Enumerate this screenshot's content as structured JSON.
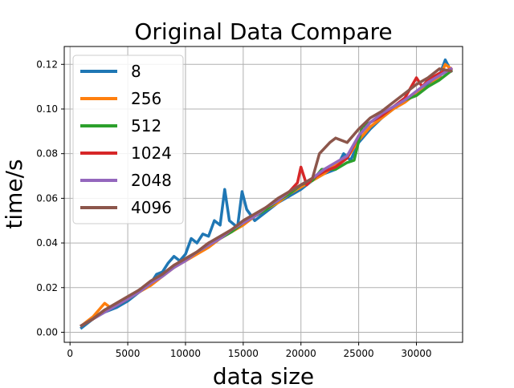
{
  "chart_data": {
    "type": "line",
    "title": "Original Data Compare",
    "xlabel": "data size",
    "ylabel": "time/s",
    "xlim": [
      -500,
      34000
    ],
    "ylim": [
      -0.0045,
      0.128
    ],
    "xticks": [
      0,
      5000,
      10000,
      15000,
      20000,
      25000,
      30000
    ],
    "xtick_labels": [
      "0",
      "5000",
      "10000",
      "15000",
      "20000",
      "25000",
      "30000"
    ],
    "yticks": [
      0.0,
      0.02,
      0.04,
      0.06,
      0.08,
      0.1,
      0.12
    ],
    "ytick_labels": [
      "0.00",
      "0.02",
      "0.04",
      "0.06",
      "0.08",
      "0.10",
      "0.12"
    ],
    "grid": true,
    "legend_position": "top-left",
    "series": [
      {
        "name": "8",
        "color": "#1f77b4",
        "points": [
          [
            1000,
            0.002
          ],
          [
            2000,
            0.006
          ],
          [
            3000,
            0.009
          ],
          [
            4000,
            0.011
          ],
          [
            5000,
            0.014
          ],
          [
            6000,
            0.018
          ],
          [
            7000,
            0.022
          ],
          [
            7500,
            0.026
          ],
          [
            8000,
            0.027
          ],
          [
            8500,
            0.031
          ],
          [
            9000,
            0.034
          ],
          [
            9500,
            0.032
          ],
          [
            10000,
            0.035
          ],
          [
            10500,
            0.042
          ],
          [
            11000,
            0.04
          ],
          [
            11500,
            0.044
          ],
          [
            12000,
            0.043
          ],
          [
            12500,
            0.05
          ],
          [
            13000,
            0.048
          ],
          [
            13400,
            0.064
          ],
          [
            13800,
            0.05
          ],
          [
            14500,
            0.047
          ],
          [
            14900,
            0.063
          ],
          [
            15300,
            0.055
          ],
          [
            16000,
            0.05
          ],
          [
            17000,
            0.054
          ],
          [
            18000,
            0.058
          ],
          [
            19000,
            0.061
          ],
          [
            20000,
            0.064
          ],
          [
            21000,
            0.068
          ],
          [
            22000,
            0.071
          ],
          [
            23000,
            0.073
          ],
          [
            23700,
            0.08
          ],
          [
            24300,
            0.077
          ],
          [
            25000,
            0.085
          ],
          [
            26000,
            0.091
          ],
          [
            27000,
            0.096
          ],
          [
            28000,
            0.1
          ],
          [
            29000,
            0.104
          ],
          [
            30000,
            0.107
          ],
          [
            31000,
            0.111
          ],
          [
            32000,
            0.115
          ],
          [
            32500,
            0.122
          ],
          [
            33000,
            0.117
          ]
        ]
      },
      {
        "name": "256",
        "color": "#ff7f0e",
        "points": [
          [
            1000,
            0.003
          ],
          [
            2000,
            0.007
          ],
          [
            3000,
            0.013
          ],
          [
            3500,
            0.011
          ],
          [
            4000,
            0.012
          ],
          [
            5000,
            0.015
          ],
          [
            6000,
            0.018
          ],
          [
            7000,
            0.021
          ],
          [
            8000,
            0.025
          ],
          [
            9000,
            0.029
          ],
          [
            10000,
            0.032
          ],
          [
            11000,
            0.035
          ],
          [
            12000,
            0.038
          ],
          [
            13000,
            0.042
          ],
          [
            14000,
            0.045
          ],
          [
            15000,
            0.048
          ],
          [
            16000,
            0.052
          ],
          [
            17000,
            0.055
          ],
          [
            18000,
            0.058
          ],
          [
            19000,
            0.062
          ],
          [
            20000,
            0.065
          ],
          [
            21000,
            0.068
          ],
          [
            22000,
            0.071
          ],
          [
            23000,
            0.075
          ],
          [
            24000,
            0.078
          ],
          [
            25000,
            0.086
          ],
          [
            26000,
            0.092
          ],
          [
            27000,
            0.096
          ],
          [
            28000,
            0.1
          ],
          [
            29000,
            0.103
          ],
          [
            30000,
            0.107
          ],
          [
            31000,
            0.11
          ],
          [
            32000,
            0.114
          ],
          [
            32500,
            0.12
          ],
          [
            33000,
            0.118
          ]
        ]
      },
      {
        "name": "512",
        "color": "#2ca02c",
        "points": [
          [
            1000,
            0.003
          ],
          [
            2000,
            0.006
          ],
          [
            3000,
            0.01
          ],
          [
            4000,
            0.012
          ],
          [
            5000,
            0.015
          ],
          [
            6000,
            0.018
          ],
          [
            7000,
            0.022
          ],
          [
            8000,
            0.026
          ],
          [
            9000,
            0.029
          ],
          [
            10000,
            0.033
          ],
          [
            11000,
            0.036
          ],
          [
            12000,
            0.039
          ],
          [
            13000,
            0.042
          ],
          [
            14000,
            0.045
          ],
          [
            15000,
            0.049
          ],
          [
            16000,
            0.052
          ],
          [
            17000,
            0.055
          ],
          [
            18000,
            0.059
          ],
          [
            19000,
            0.062
          ],
          [
            20000,
            0.066
          ],
          [
            21000,
            0.068
          ],
          [
            21800,
            0.073
          ],
          [
            23000,
            0.073
          ],
          [
            24000,
            0.076
          ],
          [
            24600,
            0.077
          ],
          [
            25300,
            0.092
          ],
          [
            26000,
            0.094
          ],
          [
            27000,
            0.097
          ],
          [
            28000,
            0.101
          ],
          [
            29000,
            0.104
          ],
          [
            30000,
            0.106
          ],
          [
            31000,
            0.11
          ],
          [
            32000,
            0.113
          ],
          [
            33000,
            0.117
          ]
        ]
      },
      {
        "name": "1024",
        "color": "#d62728",
        "points": [
          [
            1000,
            0.003
          ],
          [
            2000,
            0.006
          ],
          [
            3000,
            0.01
          ],
          [
            4000,
            0.012
          ],
          [
            5000,
            0.015
          ],
          [
            6000,
            0.019
          ],
          [
            7000,
            0.022
          ],
          [
            8000,
            0.026
          ],
          [
            9000,
            0.03
          ],
          [
            10000,
            0.033
          ],
          [
            11000,
            0.036
          ],
          [
            12000,
            0.04
          ],
          [
            13000,
            0.042
          ],
          [
            14000,
            0.046
          ],
          [
            15000,
            0.049
          ],
          [
            16000,
            0.052
          ],
          [
            17000,
            0.056
          ],
          [
            18000,
            0.059
          ],
          [
            19000,
            0.063
          ],
          [
            19700,
            0.067
          ],
          [
            20000,
            0.074
          ],
          [
            20500,
            0.066
          ],
          [
            21000,
            0.069
          ],
          [
            22000,
            0.072
          ],
          [
            23000,
            0.074
          ],
          [
            24000,
            0.078
          ],
          [
            25000,
            0.088
          ],
          [
            26000,
            0.094
          ],
          [
            27000,
            0.097
          ],
          [
            28000,
            0.101
          ],
          [
            29000,
            0.105
          ],
          [
            30000,
            0.114
          ],
          [
            30500,
            0.11
          ],
          [
            31000,
            0.113
          ],
          [
            32000,
            0.116
          ],
          [
            33000,
            0.118
          ]
        ]
      },
      {
        "name": "2048",
        "color": "#9467bd",
        "points": [
          [
            1000,
            0.003
          ],
          [
            2000,
            0.006
          ],
          [
            3000,
            0.009
          ],
          [
            4000,
            0.012
          ],
          [
            5000,
            0.015
          ],
          [
            6000,
            0.018
          ],
          [
            7000,
            0.022
          ],
          [
            8000,
            0.025
          ],
          [
            9000,
            0.029
          ],
          [
            10000,
            0.032
          ],
          [
            11000,
            0.036
          ],
          [
            12000,
            0.039
          ],
          [
            13000,
            0.042
          ],
          [
            14000,
            0.046
          ],
          [
            15000,
            0.049
          ],
          [
            16000,
            0.052
          ],
          [
            17000,
            0.056
          ],
          [
            18000,
            0.059
          ],
          [
            19000,
            0.063
          ],
          [
            20000,
            0.066
          ],
          [
            21000,
            0.069
          ],
          [
            22000,
            0.073
          ],
          [
            23000,
            0.076
          ],
          [
            24000,
            0.079
          ],
          [
            25000,
            0.088
          ],
          [
            26000,
            0.094
          ],
          [
            27000,
            0.098
          ],
          [
            28000,
            0.101
          ],
          [
            29000,
            0.104
          ],
          [
            30000,
            0.108
          ],
          [
            31000,
            0.112
          ],
          [
            32000,
            0.115
          ],
          [
            33000,
            0.118
          ]
        ]
      },
      {
        "name": "4096",
        "color": "#8c564b",
        "points": [
          [
            1000,
            0.003
          ],
          [
            2000,
            0.006
          ],
          [
            3000,
            0.01
          ],
          [
            4000,
            0.013
          ],
          [
            5000,
            0.016
          ],
          [
            6000,
            0.019
          ],
          [
            7000,
            0.023
          ],
          [
            8000,
            0.026
          ],
          [
            9000,
            0.03
          ],
          [
            10000,
            0.033
          ],
          [
            11000,
            0.036
          ],
          [
            12000,
            0.04
          ],
          [
            13000,
            0.043
          ],
          [
            14000,
            0.046
          ],
          [
            15000,
            0.05
          ],
          [
            16000,
            0.053
          ],
          [
            17000,
            0.056
          ],
          [
            18000,
            0.06
          ],
          [
            19000,
            0.063
          ],
          [
            20000,
            0.066
          ],
          [
            21000,
            0.069
          ],
          [
            21600,
            0.08
          ],
          [
            22500,
            0.085
          ],
          [
            23000,
            0.087
          ],
          [
            24000,
            0.085
          ],
          [
            25000,
            0.091
          ],
          [
            26000,
            0.096
          ],
          [
            27000,
            0.099
          ],
          [
            28000,
            0.103
          ],
          [
            29000,
            0.107
          ],
          [
            30000,
            0.111
          ],
          [
            31000,
            0.114
          ],
          [
            32000,
            0.118
          ],
          [
            33000,
            0.117
          ]
        ]
      }
    ]
  }
}
